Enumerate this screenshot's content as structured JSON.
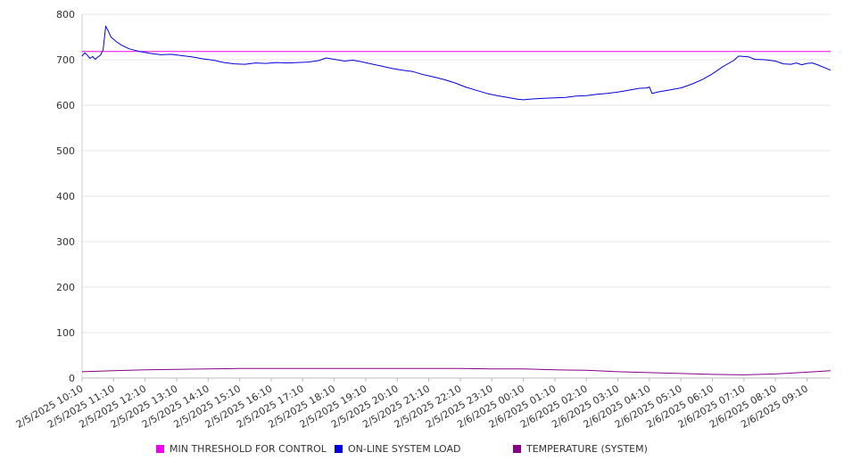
{
  "chart_data": {
    "type": "line",
    "title": "",
    "xlabel": "",
    "ylabel": "",
    "ylim": [
      0,
      800
    ],
    "yticks": [
      0,
      100,
      200,
      300,
      400,
      500,
      600,
      700,
      800
    ],
    "grid": "horizontal",
    "legend_position": "bottom",
    "x_start": "2/5/2025 10:10",
    "x_end": "2/6/2025 09:55",
    "xticks": [
      "2/5/2025 10:10",
      "2/5/2025 11:10",
      "2/5/2025 12:10",
      "2/5/2025 13:10",
      "2/5/2025 14:10",
      "2/5/2025 15:10",
      "2/5/2025 16:10",
      "2/5/2025 17:10",
      "2/5/2025 18:10",
      "2/5/2025 19:10",
      "2/5/2025 20:10",
      "2/5/2025 21:10",
      "2/5/2025 22:10",
      "2/5/2025 23:10",
      "2/6/2025 00:10",
      "2/6/2025 01:10",
      "2/6/2025 02:10",
      "2/6/2025 03:10",
      "2/6/2025 04:10",
      "2/6/2025 05:10",
      "2/6/2025 06:10",
      "2/6/2025 07:10",
      "2/6/2025 08:10",
      "2/6/2025 09:10"
    ],
    "series": [
      {
        "name": "MIN THRESHOLD FOR CONTROL",
        "color": "#ee00ee",
        "points": [
          [
            "2/5/2025 10:10",
            718
          ],
          [
            "2/6/2025 09:55",
            718
          ]
        ]
      },
      {
        "name": "ON-LINE SYSTEM LOAD",
        "color": "#0000dd",
        "points": [
          [
            "2/5/2025 10:10",
            708
          ],
          [
            "2/5/2025 10:15",
            715
          ],
          [
            "2/5/2025 10:20",
            710
          ],
          [
            "2/5/2025 10:25",
            703
          ],
          [
            "2/5/2025 10:30",
            707
          ],
          [
            "2/5/2025 10:35",
            701
          ],
          [
            "2/5/2025 10:40",
            706
          ],
          [
            "2/5/2025 10:45",
            710
          ],
          [
            "2/5/2025 10:50",
            722
          ],
          [
            "2/5/2025 10:55",
            774
          ],
          [
            "2/5/2025 11:00",
            763
          ],
          [
            "2/5/2025 11:05",
            750
          ],
          [
            "2/5/2025 11:15",
            740
          ],
          [
            "2/5/2025 11:25",
            732
          ],
          [
            "2/5/2025 11:40",
            724
          ],
          [
            "2/5/2025 12:00",
            718
          ],
          [
            "2/5/2025 12:20",
            714
          ],
          [
            "2/5/2025 12:40",
            711
          ],
          [
            "2/5/2025 13:00",
            712
          ],
          [
            "2/5/2025 13:20",
            709
          ],
          [
            "2/5/2025 13:40",
            706
          ],
          [
            "2/5/2025 14:00",
            702
          ],
          [
            "2/5/2025 14:20",
            699
          ],
          [
            "2/5/2025 14:40",
            694
          ],
          [
            "2/5/2025 15:00",
            691
          ],
          [
            "2/5/2025 15:20",
            690
          ],
          [
            "2/5/2025 15:40",
            693
          ],
          [
            "2/5/2025 16:00",
            692
          ],
          [
            "2/5/2025 16:20",
            694
          ],
          [
            "2/5/2025 16:40",
            693
          ],
          [
            "2/5/2025 17:00",
            694
          ],
          [
            "2/5/2025 17:20",
            695
          ],
          [
            "2/5/2025 17:40",
            698
          ],
          [
            "2/5/2025 17:55",
            704
          ],
          [
            "2/5/2025 18:10",
            701
          ],
          [
            "2/5/2025 18:30",
            697
          ],
          [
            "2/5/2025 18:45",
            699
          ],
          [
            "2/5/2025 19:00",
            696
          ],
          [
            "2/5/2025 19:20",
            691
          ],
          [
            "2/5/2025 19:40",
            686
          ],
          [
            "2/5/2025 20:00",
            681
          ],
          [
            "2/5/2025 20:20",
            677
          ],
          [
            "2/5/2025 20:40",
            674
          ],
          [
            "2/5/2025 21:00",
            667
          ],
          [
            "2/5/2025 21:20",
            662
          ],
          [
            "2/5/2025 21:40",
            656
          ],
          [
            "2/5/2025 22:00",
            649
          ],
          [
            "2/5/2025 22:20",
            640
          ],
          [
            "2/5/2025 22:40",
            633
          ],
          [
            "2/5/2025 23:00",
            626
          ],
          [
            "2/5/2025 23:20",
            621
          ],
          [
            "2/5/2025 23:40",
            617
          ],
          [
            "2/6/2025 00:00",
            613
          ],
          [
            "2/6/2025 00:10",
            612
          ],
          [
            "2/6/2025 00:30",
            614
          ],
          [
            "2/6/2025 00:50",
            615
          ],
          [
            "2/6/2025 01:10",
            616
          ],
          [
            "2/6/2025 01:30",
            617
          ],
          [
            "2/6/2025 01:50",
            620
          ],
          [
            "2/6/2025 02:10",
            621
          ],
          [
            "2/6/2025 02:30",
            624
          ],
          [
            "2/6/2025 02:50",
            626
          ],
          [
            "2/6/2025 03:10",
            629
          ],
          [
            "2/6/2025 03:30",
            633
          ],
          [
            "2/6/2025 03:50",
            637
          ],
          [
            "2/6/2025 04:05",
            638
          ],
          [
            "2/6/2025 04:10",
            640
          ],
          [
            "2/6/2025 04:15",
            626
          ],
          [
            "2/6/2025 04:30",
            630
          ],
          [
            "2/6/2025 04:50",
            634
          ],
          [
            "2/6/2025 05:10",
            638
          ],
          [
            "2/6/2025 05:30",
            646
          ],
          [
            "2/6/2025 05:50",
            656
          ],
          [
            "2/6/2025 06:10",
            669
          ],
          [
            "2/6/2025 06:30",
            685
          ],
          [
            "2/6/2025 06:50",
            698
          ],
          [
            "2/6/2025 07:00",
            708
          ],
          [
            "2/6/2025 07:20",
            706
          ],
          [
            "2/6/2025 07:30",
            701
          ],
          [
            "2/6/2025 07:50",
            700
          ],
          [
            "2/6/2025 08:10",
            697
          ],
          [
            "2/6/2025 08:25",
            691
          ],
          [
            "2/6/2025 08:40",
            690
          ],
          [
            "2/6/2025 08:50",
            693
          ],
          [
            "2/6/2025 09:00",
            689
          ],
          [
            "2/6/2025 09:10",
            692
          ],
          [
            "2/6/2025 09:20",
            693
          ],
          [
            "2/6/2025 09:30",
            689
          ],
          [
            "2/6/2025 09:45",
            682
          ],
          [
            "2/6/2025 09:55",
            677
          ]
        ]
      },
      {
        "name": "TEMPERATURE (SYSTEM)",
        "color": "#880088",
        "points": [
          [
            "2/5/2025 10:10",
            14
          ],
          [
            "2/5/2025 11:10",
            16
          ],
          [
            "2/5/2025 12:10",
            18
          ],
          [
            "2/5/2025 13:10",
            19
          ],
          [
            "2/5/2025 14:10",
            20
          ],
          [
            "2/5/2025 15:10",
            21
          ],
          [
            "2/5/2025 16:10",
            21
          ],
          [
            "2/5/2025 17:10",
            21
          ],
          [
            "2/5/2025 18:10",
            21
          ],
          [
            "2/5/2025 19:10",
            21
          ],
          [
            "2/5/2025 20:10",
            21
          ],
          [
            "2/5/2025 21:10",
            21
          ],
          [
            "2/5/2025 22:10",
            21
          ],
          [
            "2/5/2025 23:10",
            20
          ],
          [
            "2/6/2025 00:10",
            20
          ],
          [
            "2/6/2025 01:10",
            18
          ],
          [
            "2/6/2025 02:10",
            17
          ],
          [
            "2/6/2025 03:10",
            14
          ],
          [
            "2/6/2025 04:10",
            12
          ],
          [
            "2/6/2025 05:10",
            10
          ],
          [
            "2/6/2025 06:10",
            8
          ],
          [
            "2/6/2025 07:10",
            7
          ],
          [
            "2/6/2025 08:10",
            9
          ],
          [
            "2/6/2025 09:10",
            13
          ],
          [
            "2/6/2025 09:55",
            16
          ]
        ]
      }
    ]
  }
}
